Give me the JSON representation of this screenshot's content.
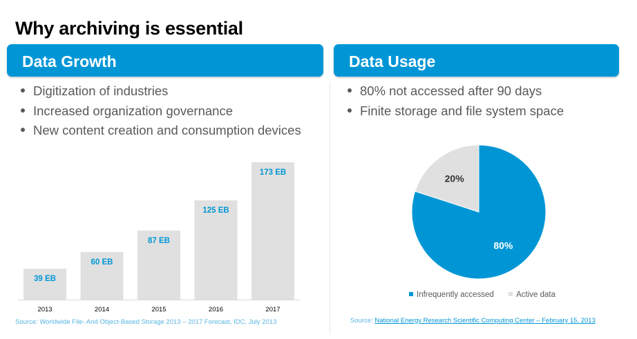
{
  "title": "Why archiving is essential",
  "colors": {
    "accent": "#0096d6",
    "bar": "#e0e0e0",
    "pie_active": "#e0e0e0",
    "text": "#58595b"
  },
  "left": {
    "header": "Data Growth",
    "bullets": [
      "Digitization of industries",
      "Increased organization governance",
      "New content creation and consumption devices"
    ],
    "source": "Source: Worldwide File- And Object-Based Storage 2013 – 2017 Forecast, IDC, July 2013"
  },
  "right": {
    "header": "Data Usage",
    "bullets": [
      "80% not accessed after 90 days",
      "Finite storage and file system space"
    ],
    "source_prefix": "Source: ",
    "source_link": "National Energy Research Scientific Computing Center – February 15, 2013",
    "legend": [
      {
        "label": "Infrequently accessed",
        "color": "#0096d6"
      },
      {
        "label": "Active data",
        "color": "#e0e0e0"
      }
    ]
  },
  "chart_data": [
    {
      "type": "bar",
      "title": "",
      "categories": [
        "2013",
        "2014",
        "2015",
        "2016",
        "2017"
      ],
      "values": [
        39,
        60,
        87,
        125,
        173
      ],
      "data_labels": [
        "39 EB",
        "60 EB",
        "87 EB",
        "125 EB",
        "173 EB"
      ],
      "unit": "EB",
      "ylim": [
        0,
        173
      ],
      "grid": false,
      "legend": "none"
    },
    {
      "type": "pie",
      "title": "",
      "categories": [
        "Infrequently accessed",
        "Active data"
      ],
      "values": [
        80,
        20
      ],
      "data_labels": [
        "80%",
        "20%"
      ],
      "legend": "bottom"
    }
  ]
}
